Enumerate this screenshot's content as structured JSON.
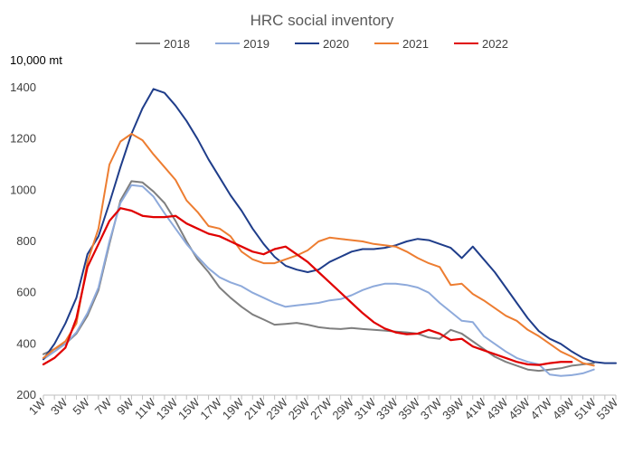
{
  "chart_data": {
    "type": "line",
    "title": "HRC social inventory",
    "unit_label": "10,000 mt",
    "xlabel": "",
    "ylabel": "",
    "ylim": [
      200,
      1400
    ],
    "yticks": [
      200,
      400,
      600,
      800,
      1000,
      1200,
      1400
    ],
    "xlim": [
      1,
      53
    ],
    "xticks": [
      "1W",
      "3W",
      "5W",
      "7W",
      "9W",
      "11W",
      "13W",
      "15W",
      "17W",
      "19W",
      "21W",
      "23W",
      "25W",
      "27W",
      "29W",
      "31W",
      "33W",
      "35W",
      "37W",
      "39W",
      "41W",
      "43W",
      "45W",
      "47W",
      "49W",
      "51W",
      "53W"
    ],
    "legend_position": "top",
    "grid": false,
    "series": [
      {
        "name": "2018",
        "color": "#7f7f7f",
        "x": [
          1,
          2,
          3,
          4,
          5,
          6,
          7,
          8,
          9,
          10,
          11,
          12,
          13,
          14,
          15,
          16,
          17,
          18,
          19,
          20,
          21,
          22,
          23,
          24,
          25,
          26,
          27,
          28,
          29,
          30,
          31,
          32,
          33,
          34,
          35,
          36,
          37,
          38,
          39,
          40,
          41,
          42,
          43,
          44,
          45,
          46,
          47,
          48,
          49,
          50,
          51
        ],
        "values": [
          360,
          380,
          400,
          440,
          510,
          610,
          790,
          960,
          1035,
          1030,
          995,
          950,
          880,
          800,
          730,
          680,
          620,
          580,
          545,
          515,
          495,
          475,
          478,
          482,
          475,
          465,
          460,
          458,
          462,
          458,
          455,
          452,
          448,
          445,
          440,
          425,
          420,
          455,
          440,
          410,
          380,
          350,
          330,
          315,
          300,
          295,
          300,
          305,
          315,
          320,
          325
        ]
      },
      {
        "name": "2019",
        "color": "#8eaadb",
        "x": [
          1,
          2,
          3,
          4,
          5,
          6,
          7,
          8,
          9,
          10,
          11,
          12,
          13,
          14,
          15,
          16,
          17,
          18,
          19,
          20,
          21,
          22,
          23,
          24,
          25,
          26,
          27,
          28,
          29,
          30,
          31,
          32,
          33,
          34,
          35,
          36,
          37,
          38,
          39,
          40,
          41,
          42,
          43,
          44,
          45,
          46,
          47,
          48,
          49,
          50,
          51
        ],
        "values": [
          340,
          370,
          400,
          445,
          520,
          620,
          800,
          950,
          1020,
          1015,
          975,
          910,
          850,
          790,
          740,
          695,
          660,
          640,
          625,
          600,
          580,
          560,
          545,
          550,
          555,
          560,
          570,
          575,
          590,
          610,
          625,
          635,
          635,
          630,
          620,
          600,
          560,
          525,
          490,
          485,
          430,
          400,
          370,
          345,
          330,
          320,
          280,
          275,
          278,
          285,
          300
        ]
      },
      {
        "name": "2020",
        "color": "#1f3d8a",
        "x": [
          1,
          2,
          3,
          4,
          5,
          6,
          7,
          8,
          9,
          10,
          11,
          12,
          13,
          14,
          15,
          16,
          17,
          18,
          19,
          20,
          21,
          22,
          23,
          24,
          25,
          26,
          27,
          28,
          29,
          30,
          31,
          32,
          33,
          34,
          35,
          36,
          37,
          38,
          39,
          40,
          41,
          42,
          43,
          44,
          45,
          46,
          47,
          48,
          49,
          50,
          51,
          52,
          53
        ],
        "values": [
          340,
          400,
          480,
          580,
          750,
          820,
          950,
          1090,
          1220,
          1320,
          1395,
          1380,
          1330,
          1270,
          1200,
          1120,
          1050,
          980,
          920,
          850,
          790,
          740,
          705,
          690,
          680,
          690,
          720,
          740,
          760,
          770,
          770,
          775,
          785,
          800,
          810,
          805,
          790,
          775,
          735,
          780,
          730,
          680,
          620,
          560,
          500,
          450,
          420,
          400,
          370,
          345,
          330,
          325,
          325
        ]
      },
      {
        "name": "2021",
        "color": "#ed7d31",
        "x": [
          1,
          2,
          3,
          4,
          5,
          6,
          7,
          8,
          9,
          10,
          11,
          12,
          13,
          14,
          15,
          16,
          17,
          18,
          19,
          20,
          21,
          22,
          23,
          24,
          25,
          26,
          27,
          28,
          29,
          30,
          31,
          32,
          33,
          34,
          35,
          36,
          37,
          38,
          39,
          40,
          41,
          42,
          43,
          44,
          45,
          46,
          47,
          48,
          49,
          50,
          51
        ],
        "values": [
          345,
          380,
          410,
          480,
          720,
          850,
          1100,
          1190,
          1220,
          1195,
          1140,
          1090,
          1040,
          960,
          915,
          860,
          850,
          820,
          760,
          730,
          715,
          715,
          730,
          745,
          765,
          800,
          815,
          810,
          805,
          800,
          790,
          785,
          780,
          760,
          735,
          715,
          700,
          630,
          635,
          595,
          570,
          540,
          510,
          490,
          455,
          430,
          400,
          370,
          350,
          325,
          315
        ]
      },
      {
        "name": "2022",
        "color": "#e00000",
        "x": [
          1,
          2,
          3,
          4,
          5,
          6,
          7,
          8,
          9,
          10,
          11,
          12,
          13,
          14,
          15,
          16,
          17,
          18,
          19,
          20,
          21,
          22,
          23,
          24,
          25,
          26,
          27,
          28,
          29,
          30,
          31,
          32,
          33,
          34,
          35,
          36,
          37,
          38,
          39,
          40,
          41,
          42,
          43,
          44,
          45,
          46,
          47,
          48,
          49
        ],
        "values": [
          320,
          345,
          385,
          500,
          700,
          790,
          880,
          930,
          920,
          900,
          895,
          895,
          900,
          870,
          850,
          830,
          820,
          800,
          780,
          760,
          750,
          770,
          780,
          750,
          720,
          680,
          640,
          600,
          560,
          520,
          485,
          460,
          445,
          438,
          440,
          455,
          440,
          415,
          420,
          390,
          375,
          360,
          345,
          330,
          320,
          318,
          325,
          330,
          330
        ]
      }
    ]
  }
}
